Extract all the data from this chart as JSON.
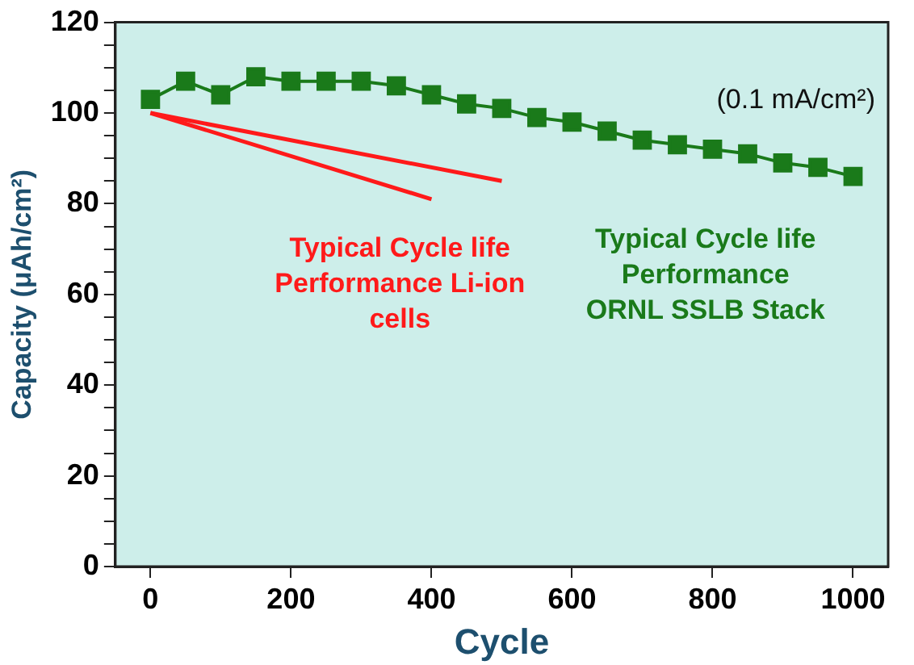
{
  "chart_data": {
    "type": "line",
    "xlabel": "Cycle",
    "ylabel": "Capacity (μAh/cm²)",
    "annotations": [
      "(0.1 mA/cm²)"
    ],
    "xlim": [
      -50,
      1050
    ],
    "xticks": [
      0,
      200,
      400,
      600,
      800,
      1000
    ],
    "ylim": [
      0,
      120
    ],
    "yticks": [
      0,
      {
        "value": 5,
        "label": null
      },
      {
        "value": 10,
        "label": null
      },
      {
        "value": 15,
        "label": null
      },
      20,
      {
        "value": 25,
        "label": null
      },
      {
        "value": 30,
        "label": null
      },
      {
        "value": 35,
        "label": null
      },
      40,
      {
        "value": 45,
        "label": null
      },
      {
        "value": 50,
        "label": null
      },
      {
        "value": 55,
        "label": null
      },
      60,
      {
        "value": 65,
        "label": null
      },
      {
        "value": 70,
        "label": null
      },
      {
        "value": 75,
        "label": null
      },
      80,
      {
        "value": 85,
        "label": null
      },
      {
        "value": 90,
        "label": null
      },
      {
        "value": 95,
        "label": null
      },
      100,
      {
        "value": 105,
        "label": null
      },
      {
        "value": 110,
        "label": null
      },
      {
        "value": 115,
        "label": null
      },
      120
    ],
    "grid": false,
    "legend": false,
    "series": [
      {
        "name": "Typical Cycle life Performance ORNL SSLB Stack",
        "color": "#1a7a1a",
        "marker": "square",
        "x": [
          0,
          50,
          100,
          150,
          200,
          250,
          300,
          350,
          400,
          450,
          500,
          550,
          600,
          650,
          700,
          750,
          800,
          850,
          900,
          950,
          1000
        ],
        "values": [
          103,
          107,
          104,
          108,
          107,
          107,
          107,
          106,
          104,
          102,
          101,
          99,
          98,
          96,
          94,
          93,
          92,
          91,
          89,
          88,
          86
        ]
      },
      {
        "name": "Typical Cycle life Performance Li-ion cells",
        "color": "#ff1a1a",
        "marker": "none",
        "x": [
          0,
          500
        ],
        "values": [
          100,
          85
        ]
      },
      {
        "color": "#ff1a1a",
        "marker": "none",
        "x": [
          0,
          400
        ],
        "values": [
          100,
          81
        ]
      }
    ]
  }
}
